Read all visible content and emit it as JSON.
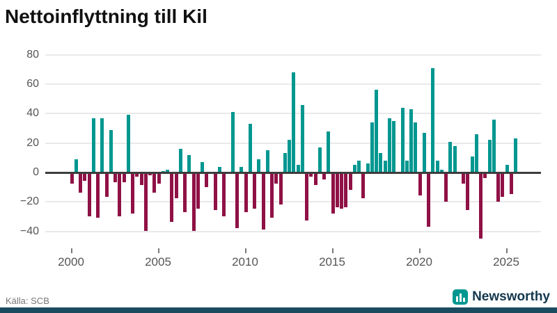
{
  "title": "Nettoinflyttning till Kil",
  "source_label": "Källa: SCB",
  "logo": {
    "text": "Newsworthy"
  },
  "colors": {
    "positive": "#009790",
    "negative": "#8f1145",
    "zero_line": "#3d3d3d",
    "grid": "#e9e9e9",
    "title_text": "#111111",
    "axis_text": "#555555",
    "source_text": "#767676",
    "logo_icon": "#009790",
    "logo_text": "#14384e",
    "bottom_band": "#1b4b5f"
  },
  "chart_data": {
    "type": "bar",
    "title": "Nettoinflyttning till Kil",
    "x_start": {
      "year": 2000,
      "quarter": 1
    },
    "frequency": "quarterly",
    "values": [
      -7,
      9,
      -13,
      -5,
      -29,
      37,
      -30,
      37,
      -16,
      29,
      -6,
      -29,
      -6,
      39,
      -27,
      -2,
      -8,
      -39,
      -1,
      -13,
      -7,
      1,
      2,
      -33,
      -17,
      16,
      -26,
      12,
      -39,
      -24,
      7,
      -9,
      0,
      -25,
      4,
      -29,
      0,
      41,
      -37,
      4,
      -26,
      33,
      -24,
      9,
      -38,
      15,
      -30,
      -7,
      -21,
      13,
      22,
      68,
      5,
      46,
      -32,
      -2,
      -8,
      17,
      -4,
      28,
      -27,
      -23,
      -24,
      -23,
      -11,
      5,
      8,
      -17,
      6,
      34,
      56,
      13,
      8,
      37,
      35,
      0,
      44,
      8,
      43,
      34,
      -15,
      27,
      -36,
      71,
      8,
      2,
      -19,
      21,
      18,
      0,
      -7,
      -25,
      11,
      26,
      -44,
      -3,
      22,
      36,
      -19,
      -16,
      5,
      -14,
      23
    ],
    "y_ticks": [
      80,
      60,
      40,
      20,
      0,
      -20,
      -40
    ],
    "ylim": [
      -47,
      84
    ],
    "x_tick_years": [
      2000,
      2005,
      2010,
      2015,
      2020,
      2025
    ],
    "x_tick_labels": [
      "2000",
      "2005",
      "2010",
      "2015",
      "2020",
      "2025"
    ],
    "grid": true,
    "legend": "none"
  }
}
